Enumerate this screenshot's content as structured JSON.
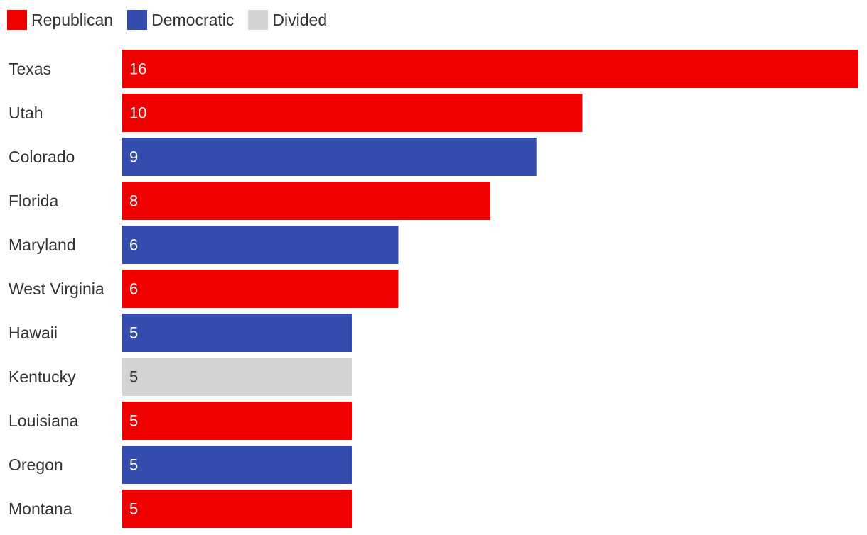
{
  "legend": {
    "items": [
      {
        "key": "republican",
        "label": "Republican",
        "color": "#ee0000"
      },
      {
        "key": "democratic",
        "label": "Democratic",
        "color": "#344cae"
      },
      {
        "key": "divided",
        "label": "Divided",
        "color": "#d3d3d3"
      }
    ]
  },
  "chart_data": {
    "type": "bar",
    "orientation": "horizontal",
    "title": "",
    "xlabel": "",
    "ylabel": "",
    "xlim": [
      0,
      16
    ],
    "grid": false,
    "legend_position": "top-left",
    "categories": [
      "Texas",
      "Utah",
      "Colorado",
      "Florida",
      "Maryland",
      "West Virginia",
      "Hawaii",
      "Kentucky",
      "Louisiana",
      "Oregon",
      "Montana"
    ],
    "values": [
      16,
      10,
      9,
      8,
      6,
      6,
      5,
      5,
      5,
      5,
      5
    ],
    "party": [
      "Republican",
      "Republican",
      "Democratic",
      "Republican",
      "Democratic",
      "Republican",
      "Democratic",
      "Divided",
      "Republican",
      "Democratic",
      "Republican"
    ],
    "colors": {
      "Republican": "#ee0000",
      "Democratic": "#344cae",
      "Divided": "#d3d3d3"
    },
    "label_colors": {
      "Republican": "#ffffff",
      "Democratic": "#ffffff",
      "Divided": "#333333"
    }
  }
}
